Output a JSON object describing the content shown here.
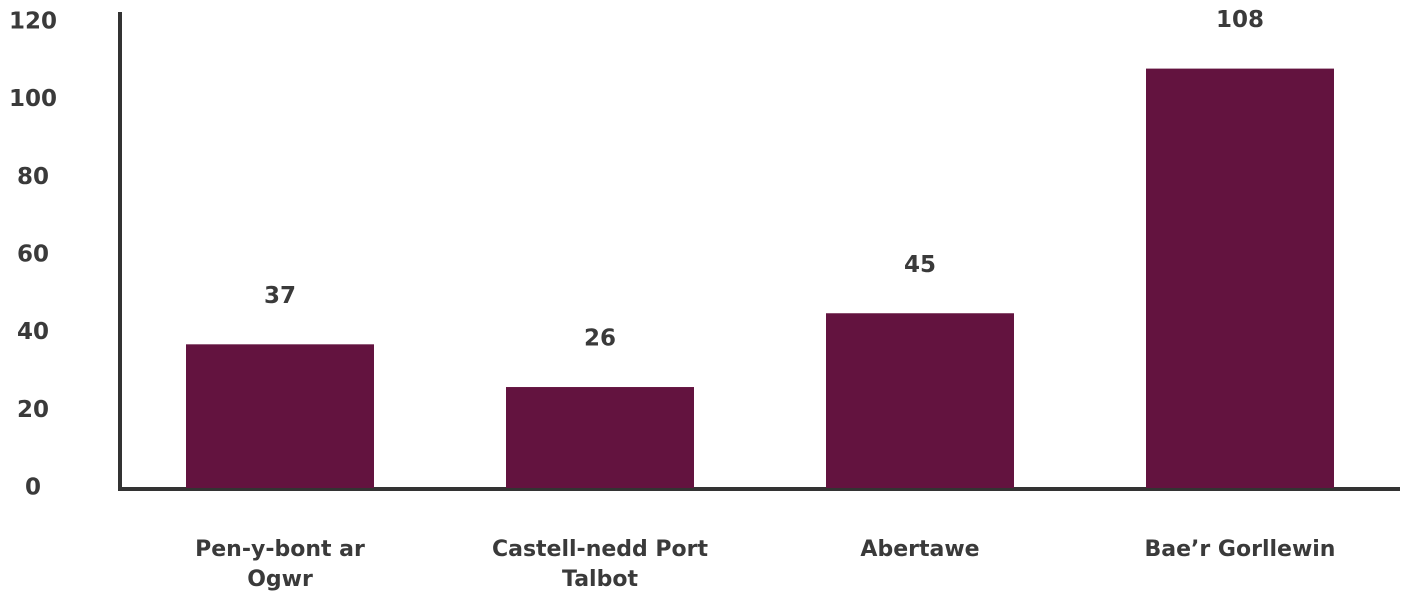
{
  "chart_data": {
    "type": "bar",
    "categories": [
      "Pen-y-bont ar Ogwr",
      "Castell-nedd Port Talbot",
      "Abertawe",
      "Bae’r Gorllewin"
    ],
    "values": [
      37,
      26,
      45,
      108
    ],
    "color": "#63133f",
    "ylim": [
      0,
      120
    ],
    "yticks": [
      0,
      20,
      40,
      60,
      80,
      100,
      120
    ],
    "grid": false
  }
}
